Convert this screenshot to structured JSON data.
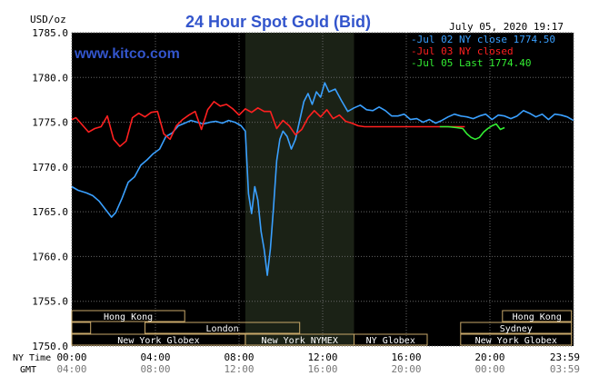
{
  "header": {
    "unit": "USD/oz",
    "title": "24 Hour Spot Gold (Bid)",
    "date": "July 05, 2020 19:17",
    "watermark": "www.kitco.com"
  },
  "legend": {
    "position": "top-right",
    "items": [
      {
        "label": "Jul 02 NY close 1774.50",
        "color": "#3aa0ff"
      },
      {
        "label": "Jul 03 NY closed",
        "color": "#ff2020"
      },
      {
        "label": "Jul 05 Last 1774.40",
        "color": "#33ee33"
      }
    ]
  },
  "chart_data": {
    "type": "line",
    "title": "24 Hour Spot Gold (Bid)",
    "ylabel": "USD/oz",
    "ylim": [
      1750,
      1785
    ],
    "xlim": [
      0,
      24
    ],
    "grid": true,
    "y_ticks": [
      "1785.0",
      "1780.0",
      "1775.0",
      "1770.0",
      "1765.0",
      "1760.0",
      "1755.0",
      "1750.0"
    ],
    "y_tick_values": [
      1785,
      1780,
      1775,
      1770,
      1765,
      1760,
      1755,
      1750
    ],
    "x_tick_values": [
      0,
      4,
      8,
      12,
      16,
      20,
      24
    ],
    "x_row_label_ny": "NY Time",
    "x_row_label_gmt": "GMT",
    "x_ticks_ny": [
      "00:00",
      "04:00",
      "08:00",
      "12:00",
      "16:00",
      "20:00",
      "23:59"
    ],
    "x_ticks_gmt": [
      "04:00",
      "08:00",
      "12:00",
      "16:00",
      "20:00",
      "00:00",
      "03:59"
    ],
    "shaded_region": [
      8.3,
      13.5
    ],
    "sessions": [
      {
        "name": "Hong Kong",
        "start": 0,
        "end": 5.4,
        "row": 1
      },
      {
        "name": "Hong Kong",
        "start": 20.6,
        "end": 23.9,
        "row": 1
      },
      {
        "name": "",
        "start": 0,
        "end": 0.9,
        "row": 2
      },
      {
        "name": "London",
        "start": 3.5,
        "end": 10.9,
        "row": 2
      },
      {
        "name": "Sydney",
        "start": 18.6,
        "end": 23.9,
        "row": 2
      },
      {
        "name": "New York Globex",
        "start": 0,
        "end": 8.3,
        "row": 3
      },
      {
        "name": "New York NYMEX",
        "start": 8.3,
        "end": 13.5,
        "row": 3
      },
      {
        "name": "NY Globex",
        "start": 13.5,
        "end": 17.0,
        "row": 3
      },
      {
        "name": "New York Globex",
        "start": 18.6,
        "end": 23.9,
        "row": 3
      }
    ],
    "series": [
      {
        "name": "Jul 02 NY close 1774.50",
        "color": "#3aa0ff",
        "x": [
          0,
          0.3,
          0.7,
          1.0,
          1.3,
          1.6,
          1.9,
          2.1,
          2.4,
          2.7,
          3.0,
          3.3,
          3.6,
          3.9,
          4.2,
          4.5,
          4.8,
          5.1,
          5.4,
          5.7,
          6.0,
          6.3,
          6.6,
          6.9,
          7.2,
          7.5,
          7.8,
          8.1,
          8.3,
          8.45,
          8.6,
          8.75,
          8.9,
          9.05,
          9.2,
          9.35,
          9.5,
          9.65,
          9.8,
          9.95,
          10.1,
          10.3,
          10.5,
          10.7,
          10.9,
          11.1,
          11.3,
          11.5,
          11.7,
          11.9,
          12.1,
          12.3,
          12.6,
          12.9,
          13.2,
          13.5,
          13.8,
          14.1,
          14.4,
          14.7,
          15.0,
          15.3,
          15.6,
          15.9,
          16.2,
          16.5,
          16.8,
          17.1,
          17.4,
          17.7,
          18.0,
          18.3,
          18.6,
          18.9,
          19.2,
          19.5,
          19.8,
          20.1,
          20.4,
          20.7,
          21.0,
          21.3,
          21.6,
          21.9,
          22.2,
          22.5,
          22.8,
          23.1,
          23.4,
          23.7,
          23.99
        ],
        "values": [
          1767.8,
          1767.4,
          1767.1,
          1766.8,
          1766.2,
          1765.3,
          1764.4,
          1764.9,
          1766.5,
          1768.3,
          1768.9,
          1770.2,
          1770.8,
          1771.5,
          1772.0,
          1773.4,
          1773.8,
          1774.6,
          1774.9,
          1775.2,
          1775.0,
          1774.8,
          1775.0,
          1775.1,
          1774.9,
          1775.2,
          1775.0,
          1774.6,
          1774.0,
          1767.0,
          1764.8,
          1767.8,
          1766.3,
          1762.8,
          1760.8,
          1757.9,
          1760.9,
          1765.6,
          1770.7,
          1773.1,
          1774.0,
          1773.4,
          1772.0,
          1773.1,
          1775.2,
          1777.3,
          1778.2,
          1777.0,
          1778.4,
          1777.8,
          1779.4,
          1778.4,
          1778.7,
          1777.4,
          1776.2,
          1776.6,
          1776.9,
          1776.4,
          1776.3,
          1776.7,
          1776.3,
          1775.7,
          1775.7,
          1775.9,
          1775.3,
          1775.4,
          1775.0,
          1775.3,
          1774.9,
          1775.2,
          1775.6,
          1775.9,
          1775.7,
          1775.6,
          1775.4,
          1775.7,
          1775.9,
          1775.3,
          1775.8,
          1775.7,
          1775.4,
          1775.7,
          1776.3,
          1776.0,
          1775.6,
          1775.9,
          1775.3,
          1775.9,
          1775.8,
          1775.6,
          1775.2
        ]
      },
      {
        "name": "Jul 03 NY closed",
        "color": "#ff2020",
        "x": [
          0,
          0.2,
          0.5,
          0.8,
          1.1,
          1.4,
          1.7,
          2.0,
          2.3,
          2.6,
          2.9,
          3.2,
          3.5,
          3.8,
          4.1,
          4.4,
          4.7,
          5.0,
          5.3,
          5.6,
          5.9,
          6.2,
          6.5,
          6.8,
          7.1,
          7.4,
          7.7,
          8.0,
          8.3,
          8.6,
          8.9,
          9.2,
          9.5,
          9.8,
          10.1,
          10.4,
          10.7,
          11.0,
          11.3,
          11.6,
          11.9,
          12.2,
          12.5,
          12.8,
          13.1,
          13.4,
          13.7,
          14.0,
          14.5,
          15.5,
          16.5,
          17.5,
          18.5,
          18.8
        ],
        "values": [
          1775.3,
          1775.5,
          1774.7,
          1773.9,
          1774.3,
          1774.5,
          1775.7,
          1773.1,
          1772.3,
          1772.9,
          1775.5,
          1776.0,
          1775.6,
          1776.1,
          1776.2,
          1773.7,
          1773.1,
          1774.6,
          1775.3,
          1775.8,
          1776.2,
          1774.2,
          1776.4,
          1777.3,
          1776.8,
          1777.0,
          1776.5,
          1775.8,
          1776.5,
          1776.1,
          1776.6,
          1776.2,
          1776.2,
          1774.3,
          1775.2,
          1774.6,
          1773.6,
          1774.2,
          1775.5,
          1776.3,
          1775.6,
          1776.4,
          1775.4,
          1775.8,
          1775.1,
          1774.9,
          1774.6,
          1774.5,
          1774.5,
          1774.5,
          1774.5,
          1774.5,
          1774.5,
          1774.5
        ]
      },
      {
        "name": "Jul 05 Last 1774.40",
        "color": "#33ee33",
        "x": [
          17.6,
          18.0,
          18.4,
          18.7,
          18.9,
          19.1,
          19.3,
          19.5,
          19.7,
          19.9,
          20.1,
          20.3,
          20.5,
          20.7
        ],
        "values": [
          1774.5,
          1774.5,
          1774.4,
          1774.3,
          1773.7,
          1773.3,
          1773.1,
          1773.3,
          1773.9,
          1774.3,
          1774.6,
          1774.8,
          1774.2,
          1774.4
        ]
      }
    ]
  }
}
